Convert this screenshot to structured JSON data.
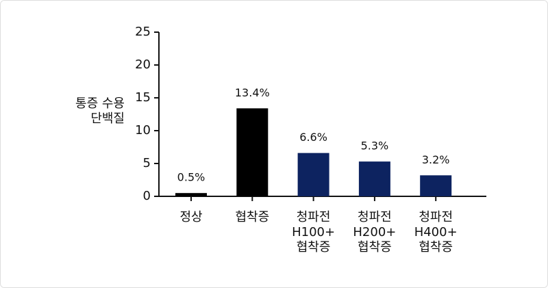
{
  "chart_data": {
    "type": "bar",
    "y_label": "통증 수용\n단백질",
    "categories": [
      "정상",
      "협착증",
      "청파전\nH100+\n협착증",
      "청파전\nH200+\n협착증",
      "청파전\nH400+\n협착증"
    ],
    "values": [
      0.5,
      13.4,
      6.6,
      5.3,
      3.2
    ],
    "value_labels": [
      "0.5%",
      "13.4%",
      "6.6%",
      "5.3%",
      "3.2%"
    ],
    "colors": [
      "#000000",
      "#000000",
      "#0d2360",
      "#0d2360",
      "#0d2360"
    ],
    "ylim": [
      0,
      25
    ],
    "yticks": [
      0,
      5,
      10,
      15,
      20,
      25
    ],
    "grid": false
  }
}
